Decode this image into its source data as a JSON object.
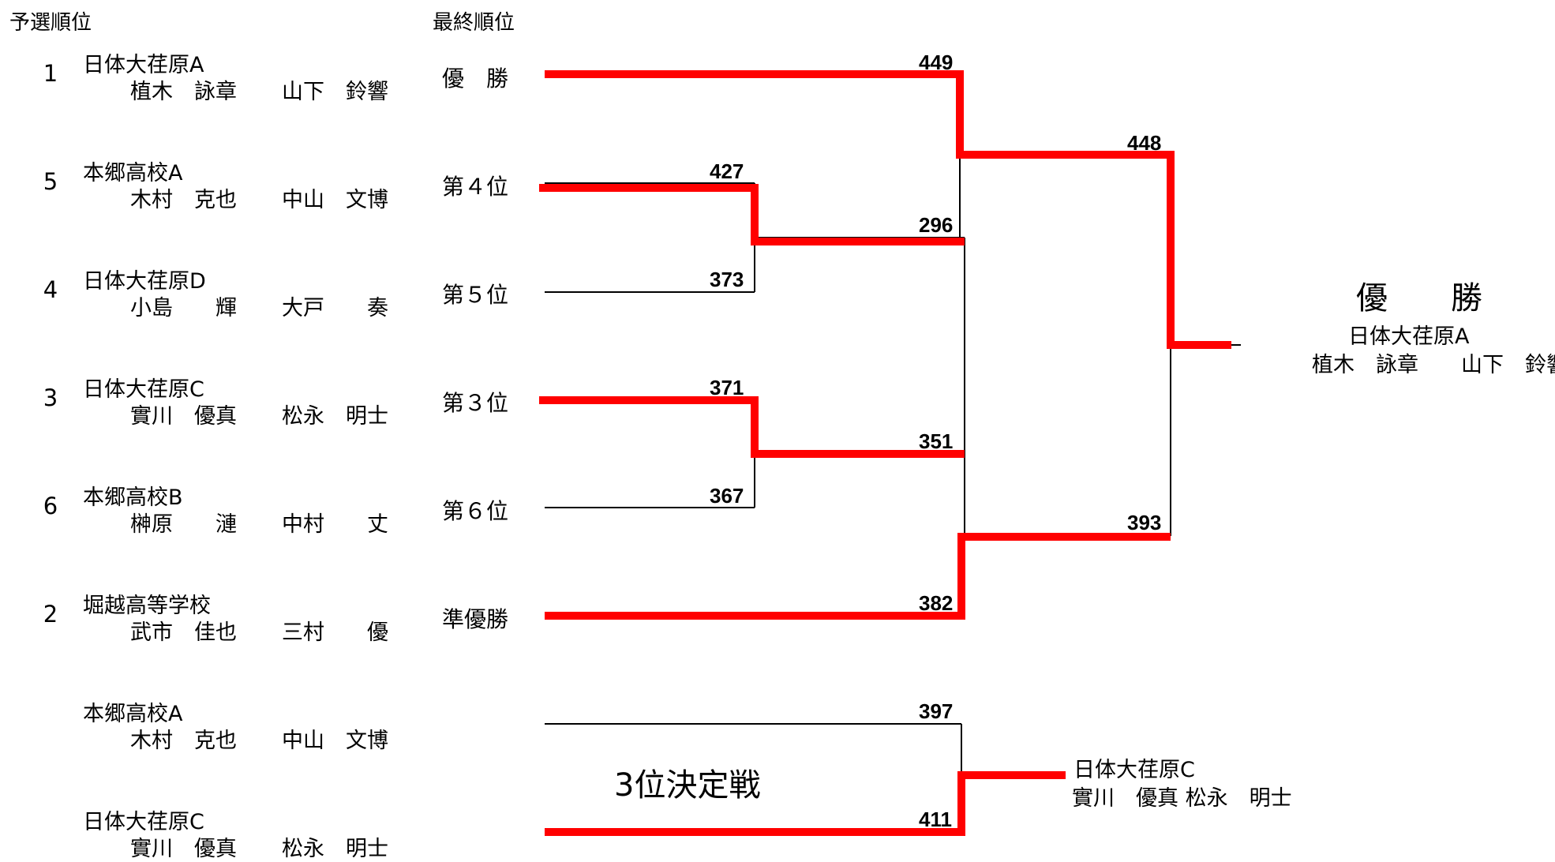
{
  "headers": {
    "prelim": "予選順位",
    "final": "最終順位"
  },
  "teams": [
    {
      "seed": "1",
      "school": "日体大荏原A",
      "p1": "植木　詠章",
      "p2": "山下　鈴響"
    },
    {
      "seed": "5",
      "school": "本郷高校A",
      "p1": "木村　克也",
      "p2": "中山　文博"
    },
    {
      "seed": "4",
      "school": "日体大荏原D",
      "p1": "小島　　輝",
      "p2": "大戸　　奏"
    },
    {
      "seed": "3",
      "school": "日体大荏原C",
      "p1": "實川　優真",
      "p2": "松永　明士"
    },
    {
      "seed": "6",
      "school": "本郷高校B",
      "p1": "榊原　　漣",
      "p2": "中村　　丈"
    },
    {
      "seed": "2",
      "school": "堀越高等学校",
      "p1": "武市　佳也",
      "p2": "三村　　優"
    }
  ],
  "third_place_teams": [
    {
      "school": "本郷高校A",
      "p1": "木村　克也",
      "p2": "中山　文博"
    },
    {
      "school": "日体大荏原C",
      "p1": "實川　優真",
      "p2": "松永　明士"
    }
  ],
  "final_ranks": [
    "優　勝",
    "第４位",
    "第５位",
    "第３位",
    "第６位",
    "準優勝"
  ],
  "scores": {
    "s449": "449",
    "s448": "448",
    "s427": "427",
    "s296": "296",
    "s373": "373",
    "s371": "371",
    "s351": "351",
    "s367": "367",
    "s393": "393",
    "s382": "382",
    "s397": "397",
    "s411": "411"
  },
  "third_place": {
    "title": "3位決定戦",
    "winner_school": "日体大荏原C",
    "winner_players": "實川　優真 松永　明士"
  },
  "champion": {
    "title": "優　　勝",
    "school": "日体大荏原A",
    "players": "植木　詠章　　山下　鈴響"
  },
  "colors": {
    "win_line": "#ff0000",
    "line": "#000000"
  }
}
